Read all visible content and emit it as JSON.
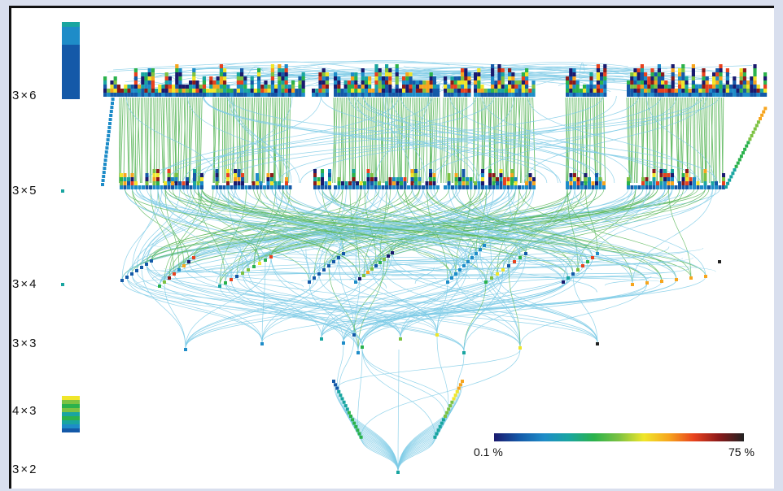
{
  "row_labels": [
    {
      "name": "3×6",
      "a": "3",
      "b": "6"
    },
    {
      "name": "3×5",
      "a": "3",
      "b": "5"
    },
    {
      "name": "3×4",
      "a": "3",
      "b": "4"
    },
    {
      "name": "3×3",
      "a": "3",
      "b": "3"
    },
    {
      "name": "4×3",
      "a": "4",
      "b": "3"
    },
    {
      "name": "3×2",
      "a": "3",
      "b": "2"
    }
  ],
  "colorbar": {
    "min_label": "0.1 %",
    "max_label": "75 %",
    "stops": [
      "#1a1a6e",
      "#1459a8",
      "#1e8cc8",
      "#19a5a0",
      "#2bb24c",
      "#7dc242",
      "#f0e62a",
      "#f7a51e",
      "#e8421e",
      "#8b1a1a",
      "#222222"
    ]
  },
  "colors": {
    "edge_blue": "#7ecbe6",
    "edge_green": "#5cb85c",
    "frame_bg": "#d9dfee"
  }
}
